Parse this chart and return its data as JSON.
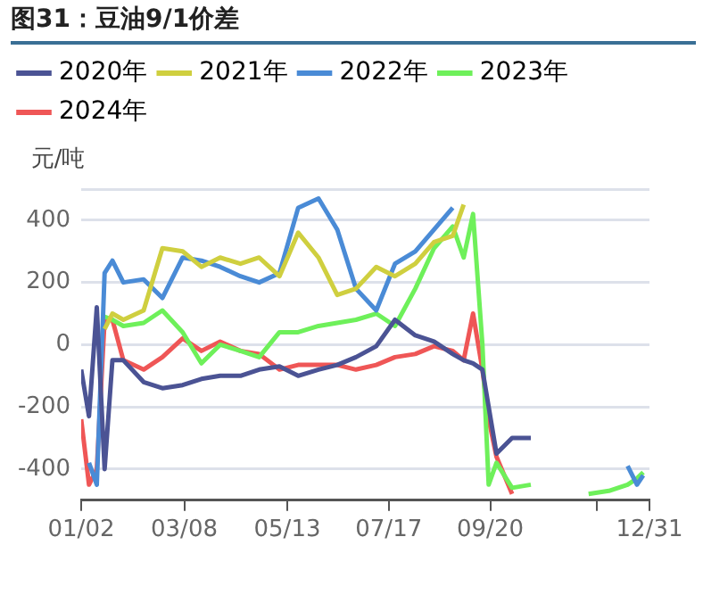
{
  "chart_data": {
    "type": "line",
    "title": "图31：豆油9/1价差",
    "ylabel": "元/吨",
    "x": [
      "--01-02",
      "--01-07",
      "--01-12",
      "--01-17",
      "--01-22",
      "--01-29",
      "--02-11",
      "--02-23",
      "--03-07",
      "--03-19",
      "--03-31",
      "--04-13",
      "--04-25",
      "--05-08",
      "--05-20",
      "--06-02",
      "--06-14",
      "--06-26",
      "--07-09",
      "--07-21",
      "--08-03",
      "--08-15",
      "--08-27",
      "--09-03",
      "--09-09",
      "--09-15",
      "--09-19",
      "--09-24",
      "--10-04",
      "--10-16",
      "--10-29",
      "--11-10",
      "--11-22",
      "--12-05",
      "--12-17",
      "--12-23",
      "--12-27"
    ],
    "series": [
      {
        "name": "2020年",
        "color": "#4b5394",
        "values": [
          -80,
          -230,
          120,
          -400,
          -50,
          -50,
          -120,
          -140,
          -130,
          -110,
          -100,
          -100,
          -80,
          -70,
          -100,
          -80,
          -65,
          -40,
          -5,
          80,
          30,
          10,
          -30,
          -50,
          -60,
          -80,
          -200,
          -350,
          -300,
          -300,
          null,
          null,
          null,
          null,
          null,
          null,
          null
        ]
      },
      {
        "name": "2021年",
        "color": "#cfcf3f",
        "values": [
          null,
          null,
          null,
          50,
          100,
          80,
          110,
          310,
          300,
          250,
          280,
          260,
          280,
          220,
          360,
          280,
          160,
          180,
          250,
          220,
          260,
          330,
          350,
          450,
          null,
          null,
          null,
          null,
          null,
          null,
          null,
          null,
          null,
          null,
          null,
          null,
          null
        ]
      },
      {
        "name": "2022年",
        "color": "#4a8bd6",
        "values": [
          null,
          -380,
          -450,
          230,
          270,
          200,
          210,
          150,
          280,
          270,
          250,
          220,
          200,
          230,
          440,
          470,
          370,
          180,
          110,
          260,
          300,
          370,
          440,
          null,
          null,
          null,
          null,
          null,
          null,
          null,
          null,
          null,
          null,
          null,
          -390,
          -450,
          -420
        ]
      },
      {
        "name": "2023年",
        "color": "#6ef05a",
        "values": [
          null,
          null,
          null,
          90,
          80,
          60,
          70,
          110,
          40,
          -60,
          0,
          -20,
          -40,
          40,
          40,
          60,
          70,
          80,
          100,
          60,
          180,
          310,
          380,
          280,
          420,
          0,
          -450,
          -380,
          -460,
          -450,
          null,
          null,
          -480,
          -470,
          -450,
          -430,
          -410
        ]
      },
      {
        "name": "2024年",
        "color": "#ef5656",
        "values": [
          -240,
          -450,
          -400,
          80,
          80,
          -50,
          -80,
          -40,
          20,
          -20,
          10,
          -20,
          -30,
          -80,
          -65,
          -65,
          -65,
          -80,
          -65,
          -40,
          -30,
          -5,
          -20,
          -50,
          100,
          -80,
          -240,
          -360,
          -480,
          null,
          null,
          null,
          null,
          null,
          null,
          null,
          null
        ]
      }
    ],
    "xlim": [
      "--01-02",
      "--12-31"
    ],
    "xticks": [
      {
        "value": "--01-02",
        "label": "01/02"
      },
      {
        "value": "--03-08",
        "label": "03/08"
      },
      {
        "value": "--05-13",
        "label": "05/13"
      },
      {
        "value": "--07-17",
        "label": "07/17"
      },
      {
        "value": "--09-20",
        "label": "09/20"
      },
      {
        "value": "--11-27",
        "label": null
      },
      {
        "value": "--12-31",
        "label": "12/31"
      }
    ],
    "ylim": [
      -500,
      500
    ],
    "yticks": [
      -400,
      -200,
      0,
      200,
      400,
      {
        "value": 500,
        "label": null
      }
    ],
    "grid": "y",
    "legend": "top",
    "marker": "none",
    "line_style": "solid"
  }
}
